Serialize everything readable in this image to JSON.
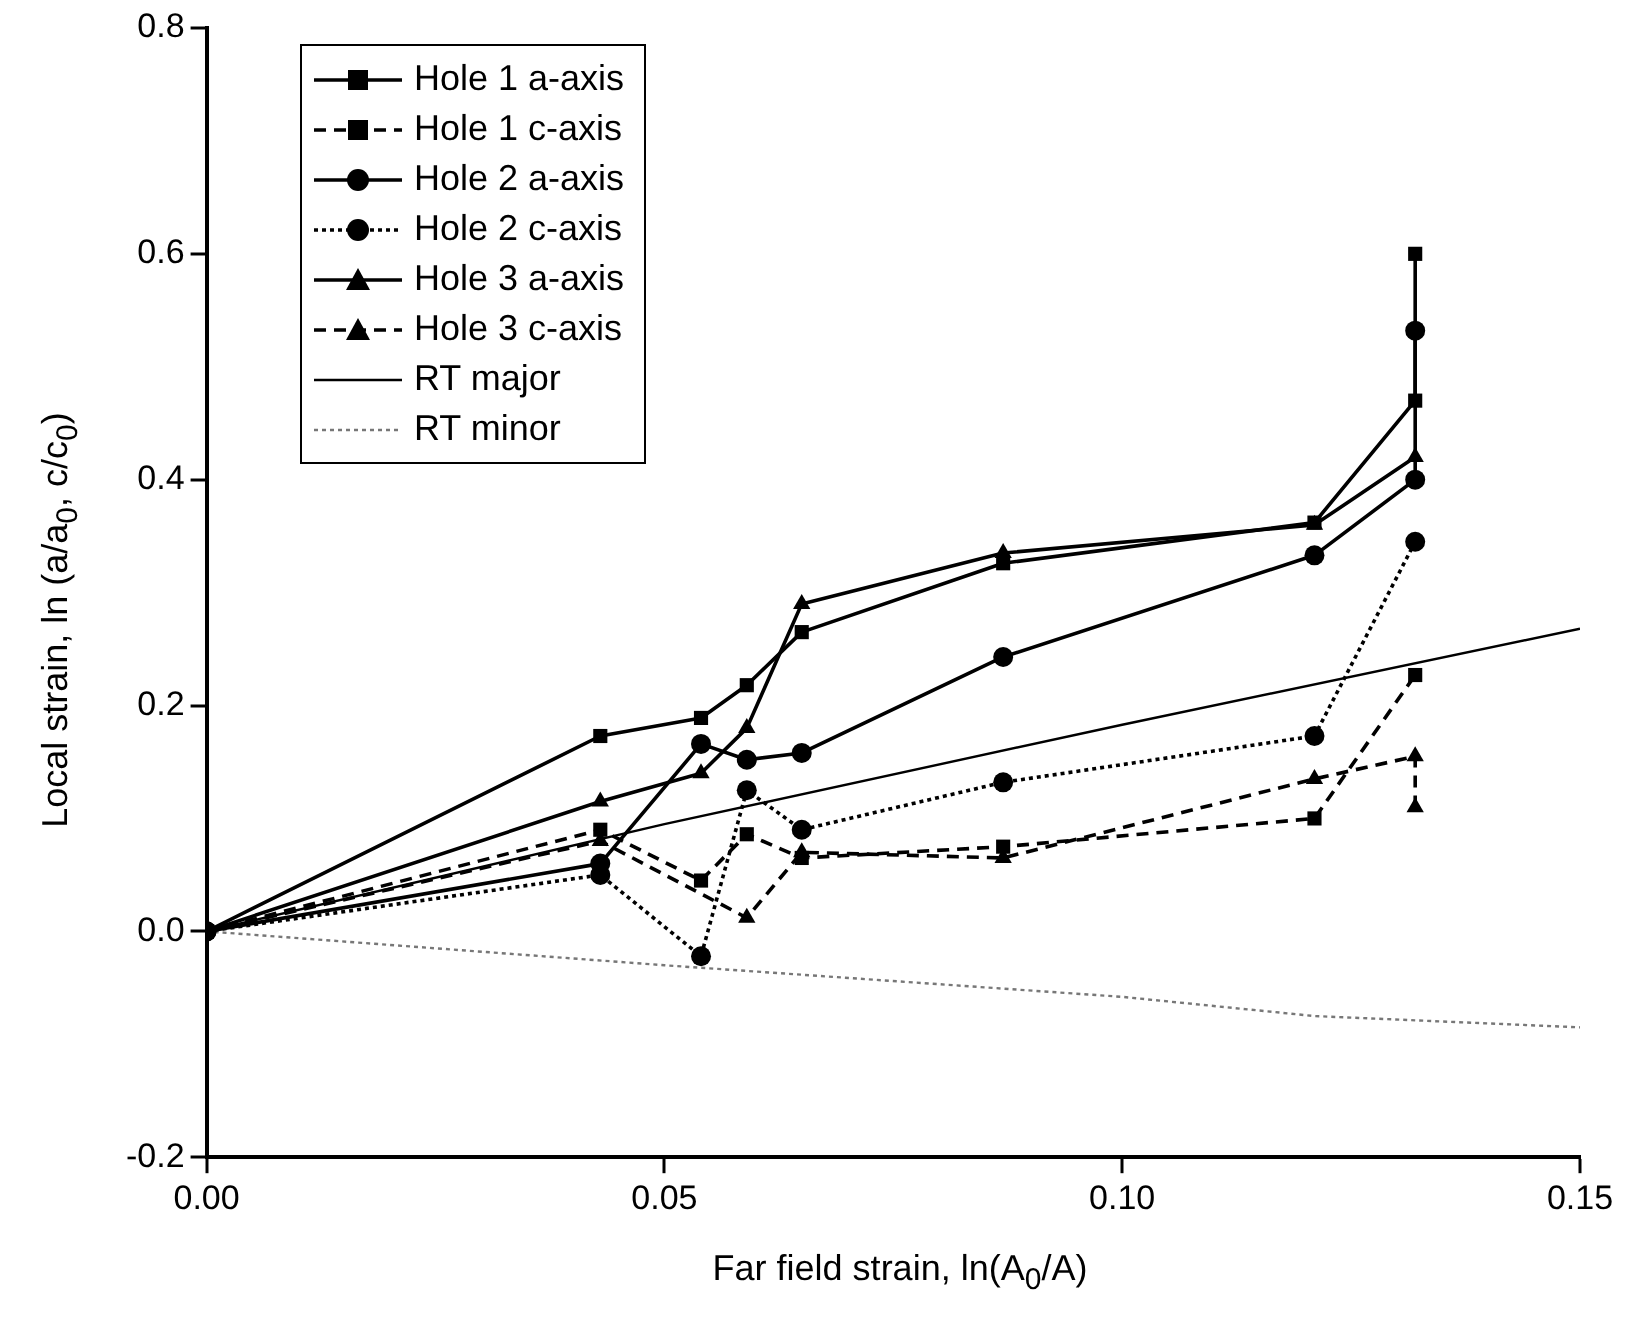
{
  "chart_data": {
    "type": "line",
    "xlabel": "Far field strain, ln(A$_{0}$/A)",
    "ylabel": "Local strain, ln (a/a$_{0}$, c/c$_{0}$)",
    "xlim": [
      0,
      0.15
    ],
    "xticks": [
      {
        "value": 0,
        "label": "0.00"
      },
      {
        "value": 0.05,
        "label": "0.05"
      },
      {
        "value": 0.1,
        "label": "0.10"
      },
      {
        "value": 0.15,
        "label": "0.15"
      }
    ],
    "ylim": [
      -0.2,
      0.8
    ],
    "yticks": [
      {
        "value": -0.2,
        "label": "-0.2"
      },
      {
        "value": 0,
        "label": "0.0"
      },
      {
        "value": 0.2,
        "label": "0.2"
      },
      {
        "value": 0.4,
        "label": "0.4"
      },
      {
        "value": 0.6,
        "label": "0.6"
      },
      {
        "value": 0.8,
        "label": "0.8"
      }
    ],
    "legend": "top left",
    "grid": false,
    "series": [
      {
        "name": "Hole 1 a-axis",
        "color": "#000000",
        "marker": "square",
        "line_style": "solid",
        "x": [
          0,
          0.043,
          0.054,
          0.059,
          0.065,
          0.087,
          0.121,
          0.132,
          0.132
        ],
        "values": [
          0,
          0.173,
          0.189,
          0.218,
          0.265,
          0.326,
          0.362,
          0.47,
          0.6
        ]
      },
      {
        "name": "Hole 1 c-axis",
        "color": "#000000",
        "marker": "square",
        "line_style": "dashed",
        "x": [
          0,
          0.043,
          0.054,
          0.059,
          0.065,
          0.087,
          0.121,
          0.132
        ],
        "values": [
          0,
          0.09,
          0.045,
          0.086,
          0.065,
          0.075,
          0.1,
          0.227
        ]
      },
      {
        "name": "Hole 2 a-axis",
        "color": "#000000",
        "marker": "circle",
        "line_style": "solid",
        "x": [
          0,
          0.043,
          0.054,
          0.059,
          0.065,
          0.087,
          0.121,
          0.132,
          0.132
        ],
        "values": [
          0,
          0.06,
          0.166,
          0.152,
          0.158,
          0.243,
          0.333,
          0.4,
          0.532
        ]
      },
      {
        "name": "Hole 2 c-axis",
        "color": "#000000",
        "marker": "circle",
        "line_style": "dotted",
        "x": [
          0,
          0.043,
          0.054,
          0.059,
          0.065,
          0.087,
          0.121,
          0.132
        ],
        "values": [
          0,
          0.05,
          -0.022,
          0.125,
          0.09,
          0.132,
          0.173,
          0.345
        ]
      },
      {
        "name": "Hole 3 a-axis",
        "color": "#000000",
        "marker": "triangle",
        "line_style": "solid",
        "x": [
          0,
          0.043,
          0.054,
          0.059,
          0.065,
          0.087,
          0.121,
          0.132
        ],
        "values": [
          0,
          0.115,
          0.14,
          0.18,
          0.29,
          0.335,
          0.36,
          0.42
        ]
      },
      {
        "name": "Hole 3 c-axis",
        "color": "#000000",
        "marker": "triangle",
        "line_style": "dashed",
        "x": [
          0,
          0.043,
          0.059,
          0.065,
          0.087,
          0.121,
          0.132,
          0.132
        ],
        "values": [
          0,
          0.08,
          0.012,
          0.07,
          0.065,
          0.135,
          0.155,
          0.11
        ]
      },
      {
        "name": "RT major",
        "color": "#000000",
        "marker": "none",
        "line_style": "solid",
        "x": [
          0,
          0.05,
          0.1,
          0.15
        ],
        "values": [
          0,
          0.095,
          0.183,
          0.268
        ]
      },
      {
        "name": "RT minor",
        "color": "#777777",
        "marker": "none",
        "line_style": "dotted",
        "x": [
          0,
          0.05,
          0.1,
          0.121,
          0.15
        ],
        "values": [
          0,
          -0.03,
          -0.058,
          -0.075,
          -0.085
        ]
      }
    ]
  }
}
